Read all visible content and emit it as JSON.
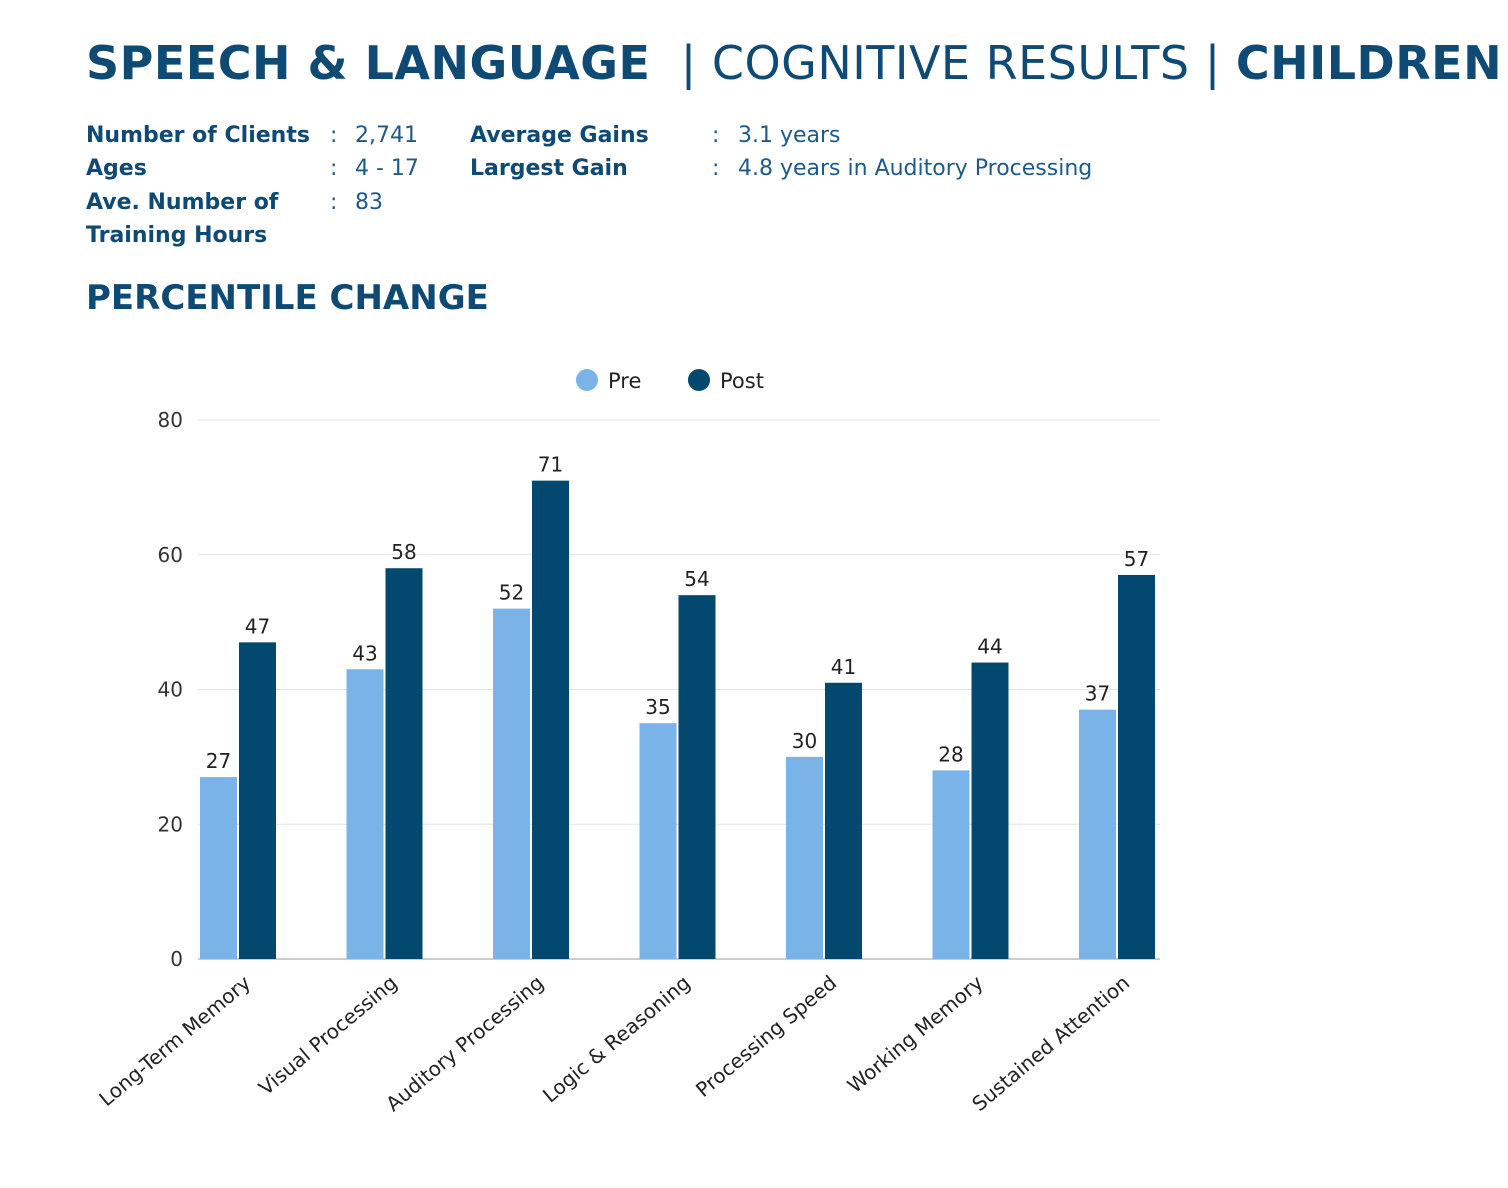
{
  "header": {
    "title_bold1": "SPEECH & LANGUAGE",
    "title_mid": "| COGNITIVE RESULTS |",
    "title_bold2": "CHILDREN"
  },
  "stats": {
    "left": [
      {
        "label": "Number of Clients",
        "value": "2,741"
      },
      {
        "label": "Ages",
        "value": "4 - 17"
      },
      {
        "label": "Ave. Number of",
        "value": "83"
      },
      {
        "label": "Training Hours",
        "value": ""
      }
    ],
    "right": [
      {
        "label": "Average Gains",
        "value": "3.1 years"
      },
      {
        "label": "Largest Gain",
        "value": "4.8 years in Auditory Processing"
      }
    ],
    "separator": ":"
  },
  "section_title": "PERCENTILE CHANGE",
  "chart_data": {
    "type": "bar",
    "title": "",
    "xlabel": "",
    "ylabel": "",
    "ylim": [
      0,
      80
    ],
    "yticks": [
      0,
      20,
      40,
      60,
      80
    ],
    "grid": true,
    "legend_position": "top",
    "categories": [
      "Long-Term Memory",
      "Visual Processing",
      "Auditory Processing",
      "Logic & Reasoning",
      "Processing Speed",
      "Working Memory",
      "Sustained Attention"
    ],
    "series": [
      {
        "name": "Pre",
        "color": "#7ab3e8",
        "values": [
          27,
          43,
          52,
          35,
          30,
          28,
          37
        ]
      },
      {
        "name": "Post",
        "color": "#03486f",
        "values": [
          47,
          58,
          71,
          54,
          41,
          44,
          57
        ]
      }
    ]
  }
}
